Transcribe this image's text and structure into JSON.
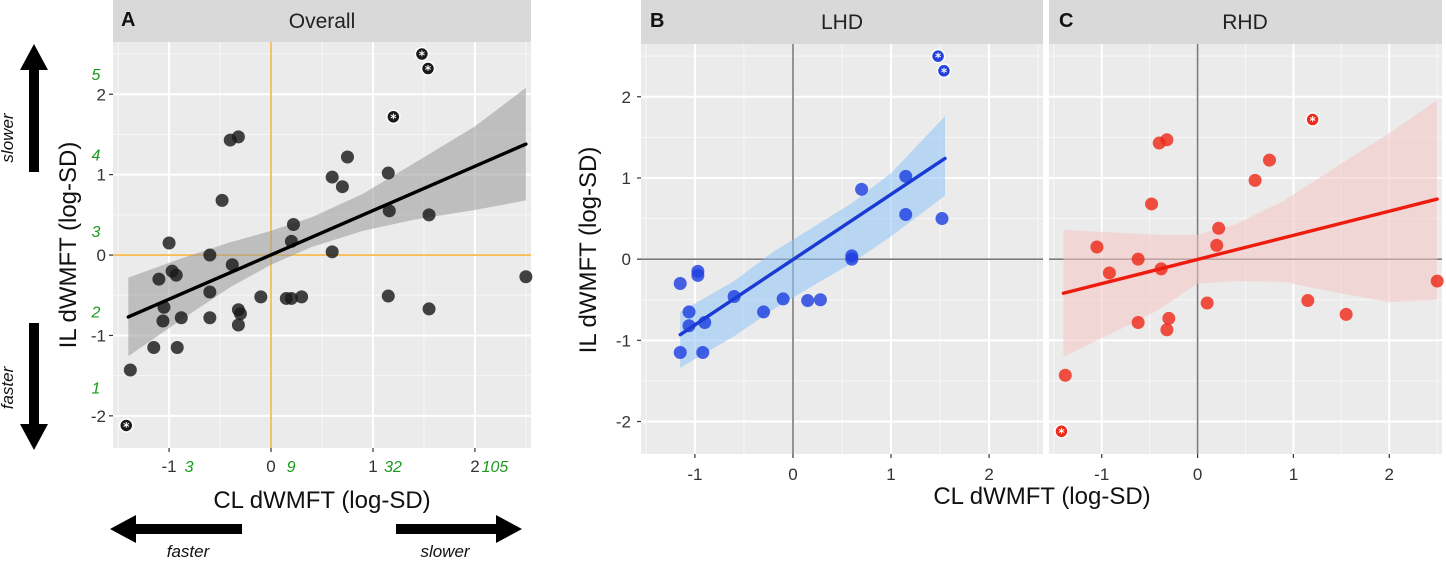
{
  "figure": {
    "directions": {
      "slower": "slower",
      "faster": "faster"
    },
    "outlier_marker": "*"
  },
  "chart_data": [
    {
      "panel": "A",
      "title": "Overall",
      "type": "scatter",
      "xlabel": "CL dWMFT (log-SD)",
      "ylabel": "IL dWMFT (log-SD)",
      "xlim": [
        -1.55,
        2.55
      ],
      "ylim": [
        -2.4,
        2.65
      ],
      "xticks": [
        -1,
        0,
        1,
        2
      ],
      "yticks": [
        -2,
        -1,
        0,
        1,
        2
      ],
      "secondary_x_ticks": [
        {
          "x": -1,
          "label": "3"
        },
        {
          "x": 0,
          "label": "9"
        },
        {
          "x": 1,
          "label": "32"
        },
        {
          "x": 2,
          "label": "105"
        }
      ],
      "secondary_y_ticks": [
        {
          "y": -1.65,
          "label": "1"
        },
        {
          "y": -0.7,
          "label": "2"
        },
        {
          "y": 0.3,
          "label": "3"
        },
        {
          "y": 1.25,
          "label": "4"
        },
        {
          "y": 2.25,
          "label": "5"
        }
      ],
      "reference_lines": {
        "x": 0,
        "y": 0,
        "color": "#f4b43c"
      },
      "point_color": "#1a1a1a",
      "line_color": "#000000",
      "band_color": "#999999",
      "fit": {
        "x": [
          -1.4,
          2.5
        ],
        "y": [
          -0.77,
          1.38
        ]
      },
      "band": {
        "x": [
          -1.4,
          -0.9,
          -0.4,
          0,
          0.4,
          0.9,
          1.4,
          2.0,
          2.5
        ],
        "upper": [
          -0.28,
          -0.05,
          0.16,
          0.3,
          0.47,
          0.76,
          1.14,
          1.6,
          2.08
        ],
        "lower": [
          -1.26,
          -0.82,
          -0.4,
          -0.12,
          0.1,
          0.3,
          0.44,
          0.56,
          0.68
        ]
      },
      "points": [
        {
          "x": -1.38,
          "y": -1.43
        },
        {
          "x": -1.15,
          "y": -1.15
        },
        {
          "x": -1.1,
          "y": -0.3
        },
        {
          "x": -1.0,
          "y": 0.15
        },
        {
          "x": -0.97,
          "y": -0.2
        },
        {
          "x": -0.93,
          "y": -0.25
        },
        {
          "x": -0.92,
          "y": -1.15
        },
        {
          "x": -0.88,
          "y": -0.78
        },
        {
          "x": -1.05,
          "y": -0.65
        },
        {
          "x": -1.06,
          "y": -0.82
        },
        {
          "x": -0.6,
          "y": -0.46
        },
        {
          "x": -0.6,
          "y": -0.78
        },
        {
          "x": -0.6,
          "y": 0.0
        },
        {
          "x": -0.48,
          "y": 0.68
        },
        {
          "x": -0.4,
          "y": 1.43
        },
        {
          "x": -0.38,
          "y": -0.12
        },
        {
          "x": -0.32,
          "y": 1.47
        },
        {
          "x": -0.32,
          "y": -0.68
        },
        {
          "x": -0.32,
          "y": -0.87
        },
        {
          "x": -0.3,
          "y": -0.73
        },
        {
          "x": -0.1,
          "y": -0.52
        },
        {
          "x": 0.15,
          "y": -0.54
        },
        {
          "x": 0.2,
          "y": 0.17
        },
        {
          "x": 0.22,
          "y": 0.38
        },
        {
          "x": 0.2,
          "y": -0.54
        },
        {
          "x": 0.3,
          "y": -0.52
        },
        {
          "x": 0.6,
          "y": 0.97
        },
        {
          "x": 0.6,
          "y": 0.04
        },
        {
          "x": 0.7,
          "y": 0.85
        },
        {
          "x": 0.75,
          "y": 1.22
        },
        {
          "x": 1.15,
          "y": 1.02
        },
        {
          "x": 1.16,
          "y": 0.55
        },
        {
          "x": 1.15,
          "y": -0.51
        },
        {
          "x": 1.55,
          "y": 0.5
        },
        {
          "x": 1.55,
          "y": -0.67
        },
        {
          "x": 2.5,
          "y": -0.27
        }
      ],
      "outliers": [
        {
          "x": -1.42,
          "y": -2.12
        },
        {
          "x": 1.2,
          "y": 1.72
        },
        {
          "x": 1.48,
          "y": 2.5
        },
        {
          "x": 1.54,
          "y": 2.32
        }
      ]
    },
    {
      "panel": "B",
      "title": "LHD",
      "type": "scatter",
      "xlabel": "CL dWMFT (log-SD)",
      "ylabel": "IL dWMFT (log-SD)",
      "xlim": [
        -1.55,
        2.55
      ],
      "ylim": [
        -2.4,
        2.65
      ],
      "xticks": [
        -1,
        0,
        1,
        2
      ],
      "yticks": [
        -2,
        -1,
        0,
        1,
        2
      ],
      "reference_lines": {
        "x": 0,
        "y": 0,
        "color": "#7a7a7a"
      },
      "point_color": "#1f3fe0",
      "line_color": "#1a3ad6",
      "band_color": "#8ec4f5",
      "fit": {
        "x": [
          -1.15,
          1.55
        ],
        "y": [
          -0.93,
          1.24
        ]
      },
      "band": {
        "x": [
          -1.15,
          -0.6,
          -0.2,
          0.2,
          0.6,
          1.0,
          1.55
        ],
        "upper": [
          -0.65,
          -0.27,
          0.09,
          0.39,
          0.69,
          1.06,
          1.76
        ],
        "lower": [
          -1.34,
          -0.95,
          -0.62,
          -0.33,
          -0.05,
          0.28,
          0.78
        ]
      },
      "points": [
        {
          "x": -1.15,
          "y": -1.15
        },
        {
          "x": -1.15,
          "y": -0.3
        },
        {
          "x": -1.06,
          "y": -0.65
        },
        {
          "x": -1.06,
          "y": -0.82
        },
        {
          "x": -0.97,
          "y": -0.15
        },
        {
          "x": -0.97,
          "y": -0.2
        },
        {
          "x": -0.92,
          "y": -1.15
        },
        {
          "x": -0.9,
          "y": -0.78
        },
        {
          "x": -0.6,
          "y": -0.46
        },
        {
          "x": -0.3,
          "y": -0.65
        },
        {
          "x": -0.1,
          "y": -0.49
        },
        {
          "x": 0.15,
          "y": -0.51
        },
        {
          "x": 0.28,
          "y": -0.5
        },
        {
          "x": 0.6,
          "y": 0.04
        },
        {
          "x": 0.6,
          "y": 0.0
        },
        {
          "x": 0.7,
          "y": 0.86
        },
        {
          "x": 1.15,
          "y": 1.02
        },
        {
          "x": 1.15,
          "y": 0.55
        },
        {
          "x": 1.52,
          "y": 0.5
        }
      ],
      "outliers": [
        {
          "x": 1.48,
          "y": 2.5
        },
        {
          "x": 1.54,
          "y": 2.32
        }
      ]
    },
    {
      "panel": "C",
      "title": "RHD",
      "type": "scatter",
      "xlabel": "CL dWMFT (log-SD)",
      "ylabel": "IL dWMFT (log-SD)",
      "xlim": [
        -1.55,
        2.55
      ],
      "ylim": [
        -2.4,
        2.65
      ],
      "xticks": [
        -1,
        0,
        1,
        2
      ],
      "yticks": [
        -2,
        -1,
        0,
        1,
        2
      ],
      "reference_lines": {
        "x": 0,
        "y": 0,
        "color": "#7a7a7a"
      },
      "point_color": "#ee2a1a",
      "line_color": "#ee1c0e",
      "band_color": "#f6c4c4",
      "fit": {
        "x": [
          -1.4,
          2.5
        ],
        "y": [
          -0.42,
          0.74
        ]
      },
      "band": {
        "x": [
          -1.4,
          -0.9,
          -0.4,
          0,
          0.4,
          0.9,
          1.4,
          2.0,
          2.5
        ],
        "upper": [
          0.36,
          0.33,
          0.3,
          0.3,
          0.43,
          0.72,
          1.1,
          1.55,
          1.96
        ],
        "lower": [
          -1.2,
          -0.92,
          -0.62,
          -0.3,
          -0.27,
          -0.28,
          -0.4,
          -0.53,
          -0.5
        ]
      },
      "points": [
        {
          "x": -1.38,
          "y": -1.43
        },
        {
          "x": -1.05,
          "y": 0.15
        },
        {
          "x": -0.92,
          "y": -0.17
        },
        {
          "x": -0.62,
          "y": 0.0
        },
        {
          "x": -0.62,
          "y": -0.78
        },
        {
          "x": -0.48,
          "y": 0.68
        },
        {
          "x": -0.4,
          "y": 1.43
        },
        {
          "x": -0.38,
          "y": -0.12
        },
        {
          "x": -0.32,
          "y": 1.47
        },
        {
          "x": -0.3,
          "y": -0.73
        },
        {
          "x": -0.32,
          "y": -0.87
        },
        {
          "x": 0.1,
          "y": -0.54
        },
        {
          "x": 0.2,
          "y": 0.17
        },
        {
          "x": 0.22,
          "y": 0.38
        },
        {
          "x": 0.6,
          "y": 0.97
        },
        {
          "x": 0.75,
          "y": 1.22
        },
        {
          "x": 1.15,
          "y": -0.51
        },
        {
          "x": 1.55,
          "y": -0.68
        },
        {
          "x": 2.5,
          "y": -0.27
        }
      ],
      "outliers": [
        {
          "x": -1.42,
          "y": -2.12
        },
        {
          "x": 1.2,
          "y": 1.72
        }
      ]
    }
  ]
}
